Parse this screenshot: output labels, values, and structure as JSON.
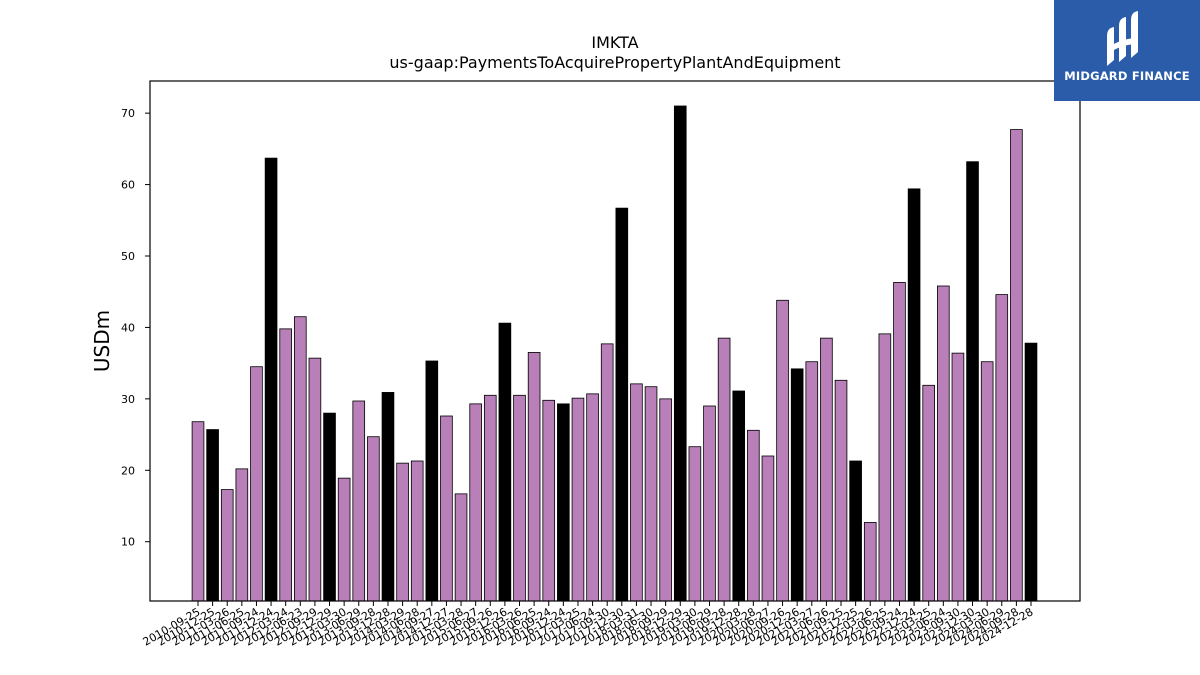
{
  "chart_data": {
    "type": "bar",
    "title": "IMKTA",
    "subtitle": "us-gaap:PaymentsToAcquirePropertyPlantAndEquipment",
    "xlabel": "",
    "ylabel": "USDm",
    "ylim": [
      1.7,
      74.5
    ],
    "yticks": [
      10,
      20,
      30,
      40,
      50,
      60,
      70
    ],
    "grid": false,
    "legend": "none",
    "colors": {
      "quarter": "#b87fb9",
      "fiscal_year_end": "#000000",
      "edge": "#000000"
    },
    "categories": [
      "2010-09-25",
      "2010-12-25",
      "2011-03-26",
      "2011-06-25",
      "2011-09-24",
      "2011-12-24",
      "2012-03-24",
      "2012-06-23",
      "2012-09-29",
      "2012-12-29",
      "2013-03-30",
      "2013-06-29",
      "2013-09-28",
      "2013-12-28",
      "2014-03-29",
      "2014-06-28",
      "2014-09-27",
      "2014-12-27",
      "2015-03-28",
      "2015-06-27",
      "2015-09-26",
      "2015-12-26",
      "2016-03-26",
      "2016-06-25",
      "2016-09-24",
      "2016-12-24",
      "2017-03-25",
      "2017-06-24",
      "2017-09-30",
      "2017-12-30",
      "2018-03-31",
      "2018-06-30",
      "2018-09-29",
      "2018-12-29",
      "2019-03-30",
      "2019-06-29",
      "2019-09-28",
      "2019-12-28",
      "2020-03-28",
      "2020-06-27",
      "2020-09-26",
      "2020-12-26",
      "2021-03-27",
      "2021-06-26",
      "2021-09-25",
      "2021-12-25",
      "2022-03-26",
      "2022-06-25",
      "2022-09-24",
      "2022-12-24",
      "2023-03-25",
      "2023-06-24",
      "2023-09-30",
      "2023-12-30",
      "2024-03-30",
      "2024-06-29",
      "2024-09-28",
      "2024-12-28"
    ],
    "values": [
      26.8,
      25.7,
      17.3,
      20.2,
      34.5,
      63.7,
      39.8,
      41.5,
      35.7,
      28.0,
      18.9,
      29.7,
      24.7,
      30.9,
      21.0,
      21.3,
      35.3,
      27.6,
      16.7,
      29.3,
      30.5,
      40.6,
      30.5,
      36.5,
      29.8,
      29.3,
      30.1,
      30.7,
      37.7,
      56.7,
      32.1,
      31.7,
      30.0,
      71.0,
      23.3,
      29.0,
      38.5,
      31.1,
      25.6,
      22.0,
      43.8,
      34.2,
      35.2,
      38.5,
      32.6,
      21.3,
      12.7,
      39.1,
      46.3,
      59.4,
      31.9,
      45.8,
      36.4,
      63.2,
      35.2,
      44.6,
      67.7,
      37.8
    ],
    "fiscal_year_end": [
      false,
      true,
      false,
      false,
      false,
      true,
      false,
      false,
      false,
      true,
      false,
      false,
      false,
      true,
      false,
      false,
      true,
      false,
      false,
      false,
      false,
      true,
      false,
      false,
      false,
      true,
      false,
      false,
      false,
      true,
      false,
      false,
      false,
      true,
      false,
      false,
      false,
      true,
      false,
      false,
      false,
      true,
      false,
      false,
      false,
      true,
      false,
      false,
      false,
      true,
      false,
      false,
      false,
      true,
      false,
      false,
      false,
      true
    ]
  },
  "logo": {
    "brand": "MIDGARD FINANCE",
    "icon": "midgard-logo-icon"
  }
}
